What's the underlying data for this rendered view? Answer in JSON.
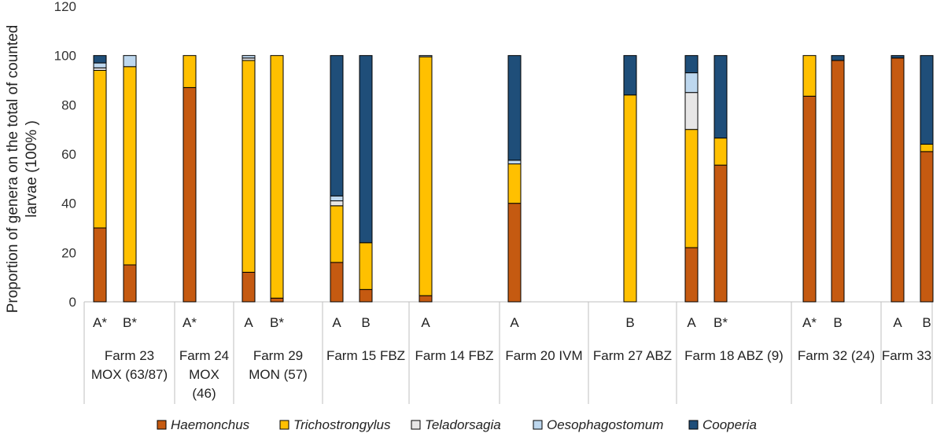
{
  "chart_data": {
    "type": "bar",
    "stacked": true,
    "ylabel_lines": [
      "Proportion of genera on the total of counted",
      "larvae (100% )"
    ],
    "ylim": [
      0,
      120
    ],
    "yticks": [
      0,
      20,
      40,
      60,
      80,
      100,
      120
    ],
    "series": [
      {
        "name": "Haemonchus",
        "color": "#c55a11"
      },
      {
        "name": "Trichostrongylus",
        "color": "#ffc000"
      },
      {
        "name": "Teladorsagia",
        "color": "#e7e6e6"
      },
      {
        "name": "Oesophagostomum",
        "color": "#bdd7ee"
      },
      {
        "name": "Cooperia",
        "color": "#1f4e79"
      }
    ],
    "groups": [
      {
        "label_lines": [
          "Farm 23",
          "MOX (63/87)"
        ],
        "bars": [
          {
            "label": "A*",
            "values": [
              30,
              64,
              1,
              2,
              3
            ]
          },
          {
            "label": "B*",
            "values": [
              15,
              80.5,
              0,
              4.5,
              0
            ]
          }
        ]
      },
      {
        "label_lines": [
          "Farm 24",
          "MOX",
          "(46)"
        ],
        "bars": [
          {
            "label": "A*",
            "values": [
              87,
              13,
              0,
              0,
              0
            ]
          }
        ]
      },
      {
        "label_lines": [
          "Farm 29",
          "MON (57)"
        ],
        "bars": [
          {
            "label": "A",
            "values": [
              12,
              86,
              1,
              1,
              0
            ]
          },
          {
            "label": "B*",
            "values": [
              1.5,
              98.5,
              0,
              0,
              0
            ]
          }
        ]
      },
      {
        "label_lines": [
          "Farm 15 FBZ"
        ],
        "bars": [
          {
            "label": "A",
            "values": [
              16,
              23,
              2,
              2,
              57
            ]
          },
          {
            "label": "B",
            "values": [
              5,
              19,
              0,
              0,
              76
            ]
          }
        ]
      },
      {
        "label_lines": [
          "Farm 14 FBZ"
        ],
        "bars": [
          {
            "label": "A",
            "values": [
              2.5,
              97,
              0,
              0.5,
              0
            ]
          }
        ]
      },
      {
        "label_lines": [
          "Farm 20 IVM"
        ],
        "bars": [
          {
            "label": "A",
            "values": [
              40,
              16,
              0,
              1.5,
              42.5
            ]
          }
        ]
      },
      {
        "label_lines": [
          "Farm 27 ABZ"
        ],
        "bars": [
          {
            "label": "B",
            "values": [
              0,
              84,
              0,
              0,
              16
            ]
          }
        ]
      },
      {
        "label_lines": [
          "Farm 18 ABZ (9)"
        ],
        "bars": [
          {
            "label": "A",
            "values": [
              22,
              48,
              15,
              8,
              7
            ]
          },
          {
            "label": "B*",
            "values": [
              55.5,
              11,
              0,
              0,
              33.5
            ]
          }
        ]
      },
      {
        "label_lines": [
          "Farm 32 (24)"
        ],
        "bars": [
          {
            "label": "A*",
            "values": [
              83.5,
              16.5,
              0,
              0,
              0
            ]
          },
          {
            "label": "B",
            "values": [
              98,
              0,
              0,
              0,
              2
            ]
          }
        ]
      },
      {
        "label_lines": [
          "Farm 33"
        ],
        "bars": [
          {
            "label": "A",
            "values": [
              99,
              0,
              0,
              0,
              1
            ]
          },
          {
            "label": "B",
            "values": [
              61,
              3,
              0,
              0,
              36
            ]
          }
        ]
      }
    ]
  }
}
